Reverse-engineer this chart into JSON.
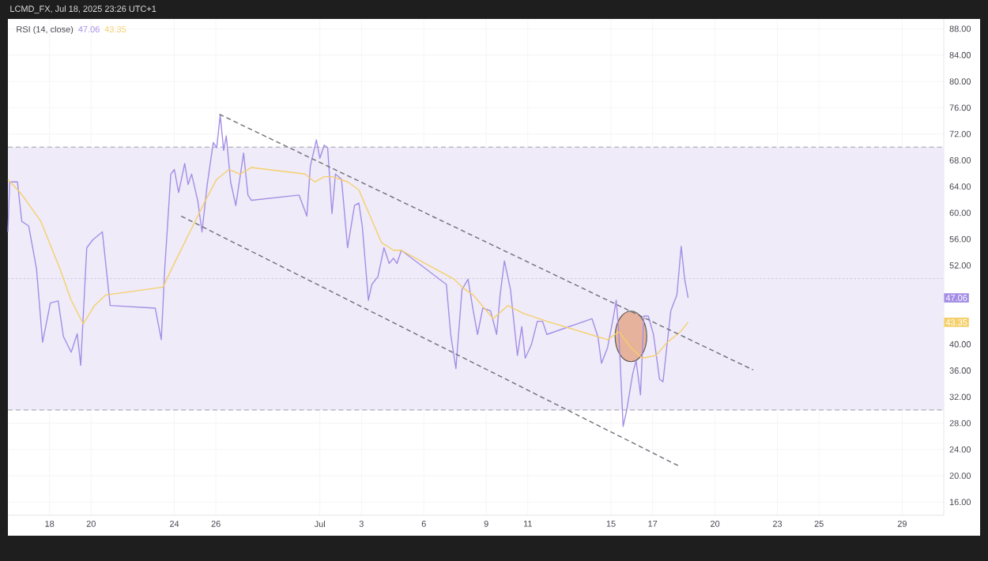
{
  "chart_data": {
    "type": "line",
    "title": "RSI (14, close)",
    "annotations": [
      "LCMD_FX, Jul 18, 2025 23:26 UTC+1",
      "47.06",
      "43.35",
      "47.06",
      "43.35"
    ],
    "series": [
      {
        "color": "#a48ee6",
        "x": [
          "2025-06-16T00:00",
          "2025-06-16T02:00",
          "2025-06-16T11:00",
          "2025-06-16T16:00",
          "2025-06-17T00:00",
          "2025-06-17T09:00",
          "2025-06-17T16:00",
          "2025-06-18T01:00",
          "2025-06-18T10:00",
          "2025-06-18T16:00",
          "2025-06-19T01:00",
          "2025-06-19T08:00",
          "2025-06-19T12:00",
          "2025-06-19T19:00",
          "2025-06-20T02:00",
          "2025-06-20T13:00",
          "2025-06-20T22:00",
          "2025-06-23T02:00",
          "2025-06-23T09:00",
          "2025-06-23T13:00",
          "2025-06-23T20:00",
          "2025-06-24T00:00",
          "2025-06-24T05:00",
          "2025-06-24T12:00",
          "2025-06-24T16:00",
          "2025-06-24T20:00",
          "2025-06-25T03:00",
          "2025-06-25T08:00",
          "2025-06-25T14:00",
          "2025-06-25T21:00",
          "2025-06-26T01:00",
          "2025-06-26T05:00",
          "2025-06-26T09:00",
          "2025-06-26T12:00",
          "2025-06-26T17:00",
          "2025-06-26T23:00",
          "2025-06-27T08:00",
          "2025-06-27T13:00",
          "2025-06-27T17:00",
          "2025-06-30T00:00",
          "2025-06-30T09:00",
          "2025-06-30T13:00",
          "2025-06-30T20:00",
          "2025-07-01T00:00",
          "2025-07-01T05:00",
          "2025-07-01T09:00",
          "2025-07-01T14:00",
          "2025-07-01T18:00",
          "2025-07-02T01:00",
          "2025-07-02T08:00",
          "2025-07-02T16:00",
          "2025-07-02T21:00",
          "2025-07-03T01:00",
          "2025-07-03T08:00",
          "2025-07-03T12:00",
          "2025-07-03T19:00",
          "2025-07-04T02:00",
          "2025-07-04T08:00",
          "2025-07-04T13:00",
          "2025-07-04T17:00",
          "2025-07-04T22:00",
          "2025-07-07T02:00",
          "2025-07-07T07:00",
          "2025-07-07T13:00",
          "2025-07-07T20:00",
          "2025-07-08T03:00",
          "2025-07-08T09:00",
          "2025-07-08T14:00",
          "2025-07-08T20:00",
          "2025-07-09T05:00",
          "2025-07-09T12:00",
          "2025-07-09T16:00",
          "2025-07-09T21:00",
          "2025-07-10T04:00",
          "2025-07-10T12:00",
          "2025-07-10T17:00",
          "2025-07-10T21:00",
          "2025-07-11T04:00",
          "2025-07-11T11:00",
          "2025-07-11T17:00",
          "2025-07-11T22:00",
          "2025-07-14T02:00",
          "2025-07-14T09:00",
          "2025-07-14T13:00",
          "2025-07-14T20:00",
          "2025-07-15T03:00",
          "2025-07-15T06:00",
          "2025-07-15T09:00",
          "2025-07-15T14:00",
          "2025-07-15T18:00",
          "2025-07-16T01:00",
          "2025-07-16T05:00",
          "2025-07-16T10:00",
          "2025-07-16T14:00",
          "2025-07-16T19:00",
          "2025-07-17T01:00",
          "2025-07-17T08:00",
          "2025-07-17T12:00",
          "2025-07-17T17:00",
          "2025-07-17T21:00",
          "2025-07-18T04:00",
          "2025-07-18T09:00",
          "2025-07-18T13:00",
          "2025-07-18T17:00"
        ],
        "values": [
          57.1,
          64.7,
          64.7,
          58.7,
          58.0,
          51.5,
          40.3,
          46.3,
          46.6,
          41.2,
          38.8,
          41.6,
          36.8,
          54.7,
          55.9,
          57.1,
          45.9,
          45.5,
          40.7,
          51.5,
          65.9,
          66.6,
          63.1,
          67.5,
          64.3,
          65.9,
          61.9,
          57.1,
          64.3,
          70.7,
          69.9,
          74.9,
          69.5,
          71.7,
          64.7,
          61.1,
          69.1,
          62.7,
          61.9,
          62.7,
          59.5,
          67.1,
          71.1,
          68.3,
          70.3,
          69.9,
          59.9,
          65.9,
          65.1,
          54.7,
          61.1,
          61.5,
          57.9,
          46.7,
          49.1,
          50.3,
          54.7,
          52.3,
          53.1,
          52.3,
          54.3,
          49.1,
          41.5,
          36.3,
          48.3,
          49.9,
          45.1,
          41.5,
          45.5,
          45.1,
          41.5,
          47.5,
          52.7,
          48.3,
          38.3,
          42.7,
          37.9,
          39.9,
          43.5,
          43.5,
          41.5,
          43.9,
          41.1,
          37.1,
          39.5,
          44.3,
          46.7,
          41.9,
          27.5,
          29.9,
          35.5,
          37.5,
          32.3,
          44.3,
          44.3,
          41.5,
          34.7,
          34.3,
          40.3,
          45.1,
          47.5,
          54.9,
          49.9,
          47.06
        ]
      },
      {
        "color": "#f5cf6a",
        "x": [
          "2025-06-16T00:00",
          "2025-06-16T16:00",
          "2025-06-17T14:00",
          "2025-06-18T12:00",
          "2025-06-19T01:00",
          "2025-06-19T15:00",
          "2025-06-20T04:00",
          "2025-06-20T17:00",
          "2025-06-23T11:00",
          "2025-06-24T00:00",
          "2025-06-24T18:00",
          "2025-06-25T12:00",
          "2025-06-26T01:00",
          "2025-06-26T15:00",
          "2025-06-27T04:00",
          "2025-06-27T17:00",
          "2025-06-30T07:00",
          "2025-06-30T18:00",
          "2025-07-01T05:00",
          "2025-07-01T14:00",
          "2025-07-02T08:00",
          "2025-07-02T21:00",
          "2025-07-03T10:00",
          "2025-07-03T23:00",
          "2025-07-04T13:00",
          "2025-07-04T22:00",
          "2025-07-07T11:00",
          "2025-07-07T20:00",
          "2025-07-08T09:00",
          "2025-07-09T08:00",
          "2025-07-10T01:00",
          "2025-07-10T19:00",
          "2025-07-11T22:00",
          "2025-07-14T20:00",
          "2025-07-15T09:00",
          "2025-07-15T23:00",
          "2025-07-16T12:00",
          "2025-07-17T04:00",
          "2025-07-17T17:00",
          "2025-07-18T08:00",
          "2025-07-18T17:00"
        ],
        "values": [
          65.1,
          62.8,
          58.7,
          51.5,
          46.7,
          43.1,
          45.9,
          47.5,
          48.7,
          52.3,
          57.1,
          61.9,
          65.1,
          66.6,
          65.9,
          66.9,
          65.9,
          64.7,
          65.5,
          65.5,
          64.7,
          63.5,
          59.5,
          55.5,
          54.3,
          54.3,
          49.9,
          48.7,
          47.5,
          43.9,
          45.9,
          44.7,
          43.5,
          40.7,
          41.9,
          39.5,
          37.9,
          38.3,
          40.3,
          41.9,
          43.35
        ]
      },
      {
        "color": "#6e6e78",
        "line_style": "dashed",
        "x": [
          "2025-06-26T04:00",
          "2025-07-21T20:00"
        ],
        "values": [
          75.0,
          36.1
        ]
      },
      {
        "color": "#6e6e78",
        "line_style": "dashed",
        "x": [
          "2025-06-24T08:00",
          "2025-07-18T06:00"
        ],
        "values": [
          59.5,
          21.5
        ]
      }
    ],
    "ref_lines": [
      {
        "axis": "y",
        "value": 70,
        "line_style": "dashed",
        "color": "#9e9ea6"
      },
      {
        "axis": "y",
        "value": 50,
        "line_style": "dotted",
        "color": "#c8c4d8"
      },
      {
        "axis": "y",
        "value": 30,
        "line_style": "dashed",
        "color": "#9e9ea6"
      }
    ],
    "bands": [
      {
        "axis": "y",
        "from": 30,
        "to": 70,
        "color": "#efebf8"
      }
    ],
    "xlim": [
      "2025-06-16",
      "2025-07-31"
    ],
    "xticks": [
      {
        "value": "2025-06-18",
        "label": "18"
      },
      {
        "value": "2025-06-20",
        "label": "20"
      },
      {
        "value": "2025-06-24",
        "label": "24"
      },
      {
        "value": "2025-06-26",
        "label": "26"
      },
      {
        "value": "2025-07-01",
        "label": "Jul"
      },
      {
        "value": "2025-07-03",
        "label": "3"
      },
      {
        "value": "2025-07-06",
        "label": "6"
      },
      {
        "value": "2025-07-09",
        "label": "9"
      },
      {
        "value": "2025-07-11",
        "label": "11"
      },
      {
        "value": "2025-07-15",
        "label": "15"
      },
      {
        "value": "2025-07-17",
        "label": "17"
      },
      {
        "value": "2025-07-20",
        "label": "20"
      },
      {
        "value": "2025-07-23",
        "label": "23"
      },
      {
        "value": "2025-07-25",
        "label": "25"
      },
      {
        "value": "2025-07-29",
        "label": "29"
      }
    ],
    "ylim": [
      14,
      89.5
    ],
    "yticks": [
      {
        "value": 16,
        "label": "16.00"
      },
      {
        "value": 20,
        "label": "20.00"
      },
      {
        "value": 24,
        "label": "24.00"
      },
      {
        "value": 28,
        "label": "28.00"
      },
      {
        "value": 32,
        "label": "32.00"
      },
      {
        "value": 36,
        "label": "36.00"
      },
      {
        "value": 40,
        "label": "40.00"
      },
      {
        "value": 52,
        "label": "52.00"
      },
      {
        "value": 56,
        "label": "56.00"
      },
      {
        "value": 60,
        "label": "60.00"
      },
      {
        "value": 64,
        "label": "64.00"
      },
      {
        "value": 68,
        "label": "68.00"
      },
      {
        "value": 72,
        "label": "72.00"
      },
      {
        "value": 76,
        "label": "76.00"
      },
      {
        "value": 80,
        "label": "80.00"
      },
      {
        "value": 84,
        "label": "84.00"
      },
      {
        "value": 88,
        "label": "88.00"
      }
    ],
    "grid": true,
    "marker": "none"
  }
}
